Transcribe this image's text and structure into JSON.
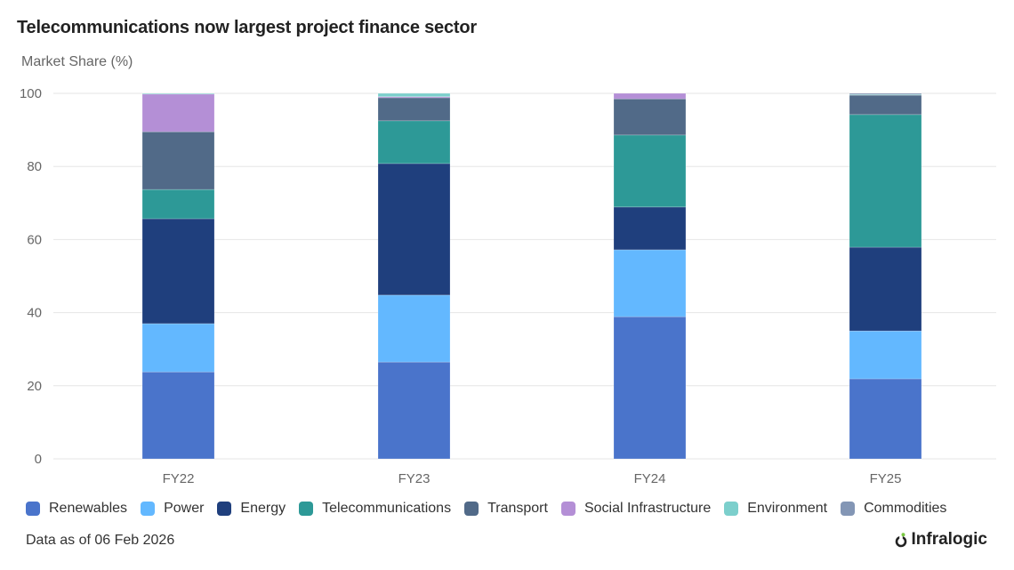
{
  "title": "Telecommunications now largest project finance sector",
  "footer": {
    "note": "Data as of 06 Feb 2026",
    "brand": "Infralogic"
  },
  "chart_data": {
    "type": "bar",
    "stacked": true,
    "title": "Telecommunications now largest project finance sector",
    "xlabel": "",
    "ylabel": "Market Share (%)",
    "ylim": [
      0,
      100
    ],
    "yticks": [
      "0",
      "20",
      "40",
      "60",
      "80",
      "100"
    ],
    "ytick_values": [
      0,
      20,
      40,
      60,
      80,
      100
    ],
    "grid": true,
    "legend_position": "bottom",
    "categories": [
      "FY22",
      "FY23",
      "FY24",
      "FY25"
    ],
    "series": [
      {
        "name": "Renewables",
        "color": "#4a74cb",
        "values": [
          23.8,
          26.5,
          38.9,
          21.9
        ]
      },
      {
        "name": "Power",
        "color": "#63b8ff",
        "values": [
          13.2,
          18.3,
          18.3,
          13.1
        ]
      },
      {
        "name": "Energy",
        "color": "#1f3f7d",
        "values": [
          28.7,
          36.0,
          11.7,
          22.9
        ]
      },
      {
        "name": "Telecommunications",
        "color": "#2d9997",
        "values": [
          8.0,
          11.7,
          19.7,
          36.3
        ]
      },
      {
        "name": "Transport",
        "color": "#516a88",
        "values": [
          15.8,
          6.3,
          9.9,
          5.3
        ]
      },
      {
        "name": "Social Infrastructure",
        "color": "#b48fd6",
        "values": [
          10.3,
          0.3,
          1.5,
          0.0
        ]
      },
      {
        "name": "Environment",
        "color": "#7ccfcc",
        "values": [
          0.2,
          0.9,
          0.0,
          0.2
        ]
      },
      {
        "name": "Commodities",
        "color": "#8396b5",
        "values": [
          0.0,
          0.0,
          0.0,
          0.3
        ]
      }
    ]
  }
}
